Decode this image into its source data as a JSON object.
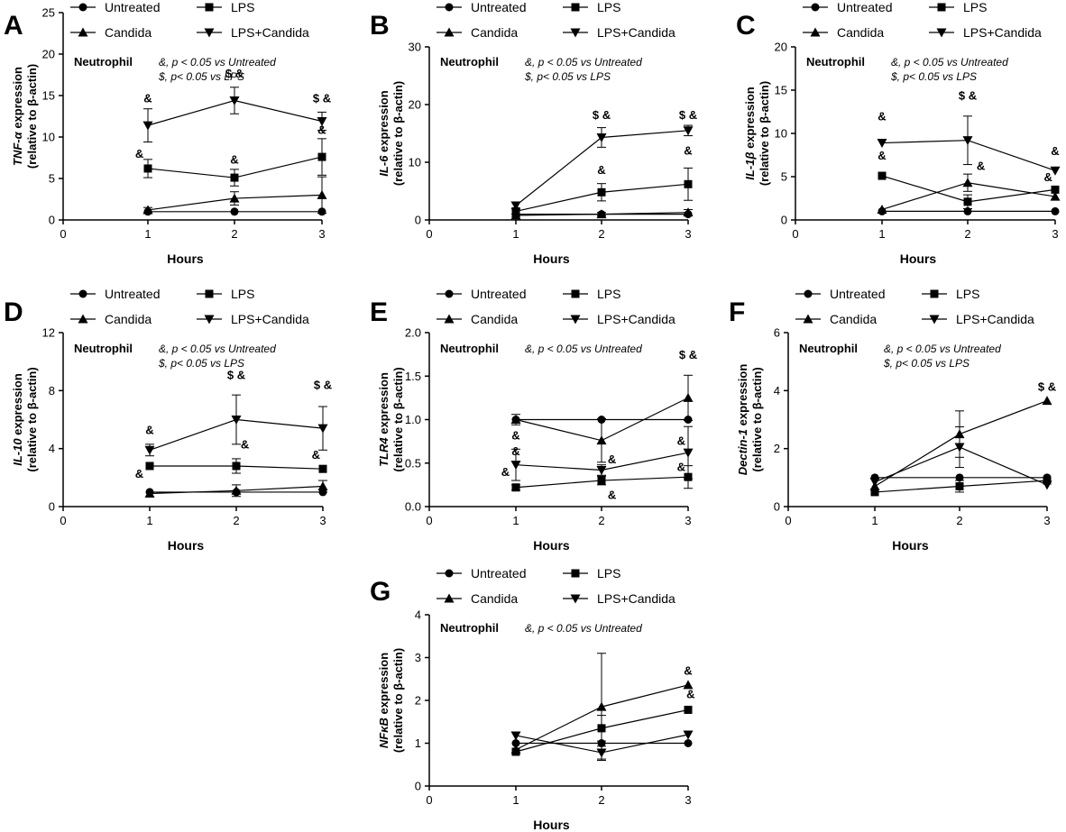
{
  "legend": {
    "untreated": "Untreated",
    "lps": "LPS",
    "candida": "Candida",
    "lps_candida": "LPS+Candida"
  },
  "cell_label": "Neutrophil",
  "x_label": "Hours",
  "y_label_suffix": "(relative to β-actin)",
  "chart_data": [
    {
      "panel": "A",
      "type": "line",
      "ylabel_gene": "TNF-α",
      "ylabel_rest": " expression",
      "notes": [
        "&, p < 0.05 vs Untreated",
        "$, p< 0.05 vs LPS"
      ],
      "x": [
        1,
        2,
        3
      ],
      "xlim": [
        0,
        3
      ],
      "xticks": [
        0,
        1,
        2,
        3
      ],
      "ylim": [
        0,
        25
      ],
      "yticks": [
        0,
        5,
        10,
        15,
        20,
        25
      ],
      "series": [
        {
          "name": "Untreated",
          "marker": "circle",
          "values": [
            1,
            1,
            1
          ],
          "err": [
            0,
            0,
            0
          ]
        },
        {
          "name": "LPS",
          "marker": "square",
          "values": [
            6.2,
            5.1,
            7.6
          ],
          "err": [
            1.1,
            1.0,
            2.2
          ]
        },
        {
          "name": "Candida",
          "marker": "triangle-up",
          "values": [
            1.2,
            2.6,
            3.0
          ],
          "err": [
            0.3,
            0.8,
            2.2
          ]
        },
        {
          "name": "LPS+Candida",
          "marker": "triangle-down",
          "values": [
            11.4,
            14.4,
            11.9
          ],
          "err": [
            2.0,
            1.6,
            1.1
          ]
        }
      ],
      "annotations": [
        {
          "x": 1,
          "y": 14.2,
          "text": "&"
        },
        {
          "x": 2,
          "y": 17.2,
          "text": "$ &"
        },
        {
          "x": 3,
          "y": 14.2,
          "text": "$ &"
        },
        {
          "x": 0.9,
          "y": 7.5,
          "text": "&"
        },
        {
          "x": 2,
          "y": 6.8,
          "text": "&"
        },
        {
          "x": 3,
          "y": 10.4,
          "text": "&"
        }
      ]
    },
    {
      "panel": "B",
      "type": "line",
      "ylabel_gene": "IL-6",
      "ylabel_rest": " expression",
      "notes": [
        "&, p < 0.05 vs Untreated",
        "$, p< 0.05 vs LPS"
      ],
      "x": [
        1,
        2,
        3
      ],
      "xlim": [
        0,
        3
      ],
      "xticks": [
        0,
        1,
        2,
        3
      ],
      "ylim": [
        0,
        30
      ],
      "yticks": [
        0,
        10,
        20,
        30
      ],
      "series": [
        {
          "name": "Untreated",
          "marker": "circle",
          "values": [
            1,
            1,
            1
          ],
          "err": [
            0,
            0,
            0
          ]
        },
        {
          "name": "LPS",
          "marker": "square",
          "values": [
            1.5,
            4.8,
            6.2
          ],
          "err": [
            0.5,
            1.5,
            2.8
          ]
        },
        {
          "name": "Candida",
          "marker": "triangle-up",
          "values": [
            0.8,
            1.0,
            1.3
          ],
          "err": [
            0.2,
            0.3,
            0.5
          ]
        },
        {
          "name": "LPS+Candida",
          "marker": "triangle-down",
          "values": [
            2.5,
            14.3,
            15.5
          ],
          "err": [
            0.6,
            1.7,
            0.9
          ]
        }
      ],
      "annotations": [
        {
          "x": 2,
          "y": 17.5,
          "text": "$ &"
        },
        {
          "x": 3,
          "y": 17.5,
          "text": "$ &"
        },
        {
          "x": 2,
          "y": 8.0,
          "text": "&"
        },
        {
          "x": 3,
          "y": 11.3,
          "text": "&"
        }
      ]
    },
    {
      "panel": "C",
      "type": "line",
      "ylabel_gene": "IL-1β",
      "ylabel_rest": " expression",
      "notes": [
        "&, p < 0.05 vs Untreated",
        "$, p< 0.05 vs LPS"
      ],
      "x": [
        1,
        2,
        3
      ],
      "xlim": [
        0,
        3
      ],
      "xticks": [
        0,
        1,
        2,
        3
      ],
      "ylim": [
        0,
        20
      ],
      "yticks": [
        0,
        5,
        10,
        15,
        20
      ],
      "series": [
        {
          "name": "Untreated",
          "marker": "circle",
          "values": [
            1,
            1,
            1
          ],
          "err": [
            0,
            0,
            0
          ]
        },
        {
          "name": "LPS",
          "marker": "square",
          "values": [
            5.1,
            2.1,
            3.5
          ],
          "err": [
            0,
            0.8,
            0
          ]
        },
        {
          "name": "Candida",
          "marker": "triangle-up",
          "values": [
            1.2,
            4.3,
            2.7
          ],
          "err": [
            0,
            1.0,
            0
          ]
        },
        {
          "name": "LPS+Candida",
          "marker": "triangle-down",
          "values": [
            8.9,
            9.2,
            5.7
          ],
          "err": [
            0,
            2.8,
            0
          ]
        }
      ],
      "annotations": [
        {
          "x": 1,
          "y": 11.5,
          "text": "&"
        },
        {
          "x": 2,
          "y": 13.9,
          "text": "$ &"
        },
        {
          "x": 3,
          "y": 7.5,
          "text": "&"
        },
        {
          "x": 1,
          "y": 7.0,
          "text": "&"
        },
        {
          "x": 2.15,
          "y": 5.8,
          "text": "&"
        },
        {
          "x": 2.92,
          "y": 4.5,
          "text": "&"
        }
      ]
    },
    {
      "panel": "D",
      "type": "line",
      "ylabel_gene": "IL-10",
      "ylabel_rest": " expression",
      "notes": [
        "&, p < 0.05 vs Untreated",
        "$, p< 0.05 vs LPS"
      ],
      "x": [
        1,
        2,
        3
      ],
      "xlim": [
        0,
        3
      ],
      "xticks": [
        0,
        1,
        2,
        3
      ],
      "ylim": [
        0,
        12
      ],
      "yticks": [
        0,
        4,
        8,
        12
      ],
      "series": [
        {
          "name": "Untreated",
          "marker": "circle",
          "values": [
            1,
            1,
            1
          ],
          "err": [
            0,
            0,
            0
          ]
        },
        {
          "name": "LPS",
          "marker": "square",
          "values": [
            2.8,
            2.8,
            2.6
          ],
          "err": [
            0,
            0.5,
            0
          ]
        },
        {
          "name": "Candida",
          "marker": "triangle-up",
          "values": [
            0.9,
            1.1,
            1.4
          ],
          "err": [
            0,
            0.4,
            0.4
          ]
        },
        {
          "name": "LPS+Candida",
          "marker": "triangle-down",
          "values": [
            3.9,
            6.0,
            5.4
          ],
          "err": [
            0.4,
            1.7,
            1.5
          ]
        }
      ],
      "annotations": [
        {
          "x": 1,
          "y": 5.0,
          "text": "&"
        },
        {
          "x": 2,
          "y": 8.8,
          "text": "$ &"
        },
        {
          "x": 3,
          "y": 8.1,
          "text": "$ &"
        },
        {
          "x": 0.88,
          "y": 2.0,
          "text": "&"
        },
        {
          "x": 2.1,
          "y": 4.0,
          "text": "&"
        },
        {
          "x": 2.92,
          "y": 3.3,
          "text": "&"
        }
      ]
    },
    {
      "panel": "E",
      "type": "line",
      "ylabel_gene": "TLR4",
      "ylabel_rest": " expression",
      "notes": [
        "&, p < 0.05 vs Untreated"
      ],
      "x": [
        1,
        2,
        3
      ],
      "xlim": [
        0,
        3
      ],
      "xticks": [
        0,
        1,
        2,
        3
      ],
      "ylim": [
        0,
        2.0
      ],
      "yticks": [
        0.0,
        0.5,
        1.0,
        1.5,
        2.0
      ],
      "series": [
        {
          "name": "Untreated",
          "marker": "circle",
          "values": [
            1.0,
            1.0,
            1.0
          ],
          "err": [
            0,
            0,
            0
          ]
        },
        {
          "name": "LPS",
          "marker": "square",
          "values": [
            0.22,
            0.3,
            0.34
          ],
          "err": [
            0.03,
            0.05,
            0.13
          ]
        },
        {
          "name": "Candida",
          "marker": "triangle-up",
          "values": [
            1.0,
            0.76,
            1.25
          ],
          "err": [
            0.06,
            0.25,
            0.26
          ]
        },
        {
          "name": "LPS+Candida",
          "marker": "triangle-down",
          "values": [
            0.48,
            0.42,
            0.62
          ],
          "err": [
            0.18,
            0.06,
            0.3
          ]
        }
      ],
      "annotations": [
        {
          "x": 3,
          "y": 1.7,
          "text": "$ &"
        },
        {
          "x": 1,
          "y": 0.77,
          "text": "&"
        },
        {
          "x": 1,
          "y": 0.59,
          "text": "&"
        },
        {
          "x": 0.88,
          "y": 0.35,
          "text": "&"
        },
        {
          "x": 2.12,
          "y": 0.5,
          "text": "&"
        },
        {
          "x": 2.12,
          "y": 0.09,
          "text": "&"
        },
        {
          "x": 2.92,
          "y": 0.71,
          "text": "&"
        },
        {
          "x": 2.92,
          "y": 0.41,
          "text": "&"
        }
      ]
    },
    {
      "panel": "F",
      "type": "line",
      "ylabel_gene": "Dectin-1",
      "ylabel_rest": " expression",
      "notes": [
        "&, p < 0.05 vs Untreated",
        "$, p< 0.05 vs LPS"
      ],
      "x": [
        1,
        2,
        3
      ],
      "xlim": [
        0,
        3
      ],
      "xticks": [
        0,
        1,
        2,
        3
      ],
      "ylim": [
        0,
        6
      ],
      "yticks": [
        0,
        2,
        4,
        6
      ],
      "series": [
        {
          "name": "Untreated",
          "marker": "circle",
          "values": [
            1,
            1,
            1
          ],
          "err": [
            0,
            0,
            0
          ]
        },
        {
          "name": "LPS",
          "marker": "square",
          "values": [
            0.5,
            0.7,
            0.9
          ],
          "err": [
            0,
            0.2,
            0
          ]
        },
        {
          "name": "Candida",
          "marker": "triangle-up",
          "values": [
            0.7,
            2.5,
            3.65
          ],
          "err": [
            0,
            0.8,
            0
          ]
        },
        {
          "name": "LPS+Candida",
          "marker": "triangle-down",
          "values": [
            0.85,
            2.05,
            0.75
          ],
          "err": [
            0,
            0.7,
            0
          ]
        }
      ],
      "annotations": [
        {
          "x": 3,
          "y": 4.0,
          "text": "$ &"
        }
      ]
    },
    {
      "panel": "G",
      "type": "line",
      "ylabel_gene": "NFκB",
      "ylabel_rest": " expression",
      "notes": [
        "&, p < 0.05 vs Untreated"
      ],
      "x": [
        1,
        2,
        3
      ],
      "xlim": [
        0,
        3
      ],
      "xticks": [
        0,
        1,
        2,
        3
      ],
      "ylim": [
        0,
        4
      ],
      "yticks": [
        0,
        1,
        2,
        3,
        4
      ],
      "series": [
        {
          "name": "Untreated",
          "marker": "circle",
          "values": [
            1,
            1,
            1
          ],
          "err": [
            0,
            0,
            0
          ]
        },
        {
          "name": "LPS",
          "marker": "square",
          "values": [
            0.8,
            1.35,
            1.78
          ],
          "err": [
            0,
            0.3,
            0
          ]
        },
        {
          "name": "Candida",
          "marker": "triangle-up",
          "values": [
            0.85,
            1.85,
            2.36
          ],
          "err": [
            0,
            1.25,
            0
          ]
        },
        {
          "name": "LPS+Candida",
          "marker": "triangle-down",
          "values": [
            1.18,
            0.78,
            1.2
          ],
          "err": [
            0,
            0.15,
            0
          ]
        }
      ],
      "annotations": [
        {
          "x": 3,
          "y": 2.6,
          "text": "&"
        },
        {
          "x": 3.03,
          "y": 2.05,
          "text": "&"
        }
      ]
    }
  ]
}
